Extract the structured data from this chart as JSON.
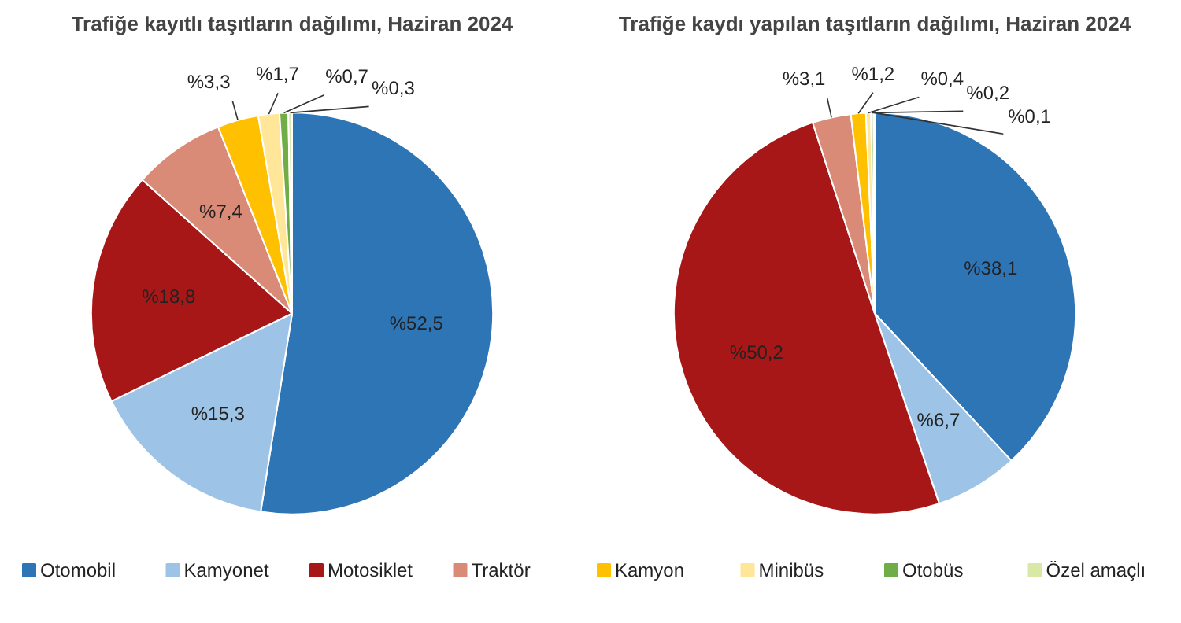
{
  "chart_data": [
    {
      "type": "pie",
      "title": "Trafiğe kayıtlı taşıtların dağılımı, Haziran 2024",
      "legend": "bottom",
      "categories": [
        "Otomobil",
        "Kamyonet",
        "Motosiklet",
        "Traktör",
        "Kamyon",
        "Minibüs",
        "Otobüs",
        "Özel amaçlı"
      ],
      "values": [
        52.5,
        15.3,
        18.8,
        7.4,
        3.3,
        1.7,
        0.7,
        0.3
      ],
      "value_labels": [
        "%52,5",
        "%15,3",
        "%18,8",
        "%7,4",
        "%3,3",
        "%1,7",
        "%0,7",
        "%0,3"
      ],
      "colors": [
        "#2e75b6",
        "#9dc3e6",
        "#a81717",
        "#d98b78",
        "#ffc000",
        "#ffe699",
        "#70ad47",
        "#d9e8a6"
      ]
    },
    {
      "type": "pie",
      "title": "Trafiğe kaydı yapılan taşıtların dağılımı, Haziran 2024",
      "categories": [
        null,
        null,
        null,
        null,
        null,
        null,
        null,
        null
      ],
      "values": [
        38.1,
        6.7,
        50.2,
        3.1,
        1.2,
        0.4,
        0.2,
        0.1
      ],
      "value_labels": [
        "%38,1",
        "%6,7",
        "%50,2",
        "%3,1",
        "%1,2",
        "%0,4",
        "%0,2",
        "%0,1"
      ],
      "colors": [
        "#2e75b6",
        "#9dc3e6",
        "#a81717",
        "#d98b78",
        "#ffc000",
        "#ffe699",
        "#70ad47",
        "#d9e8a6"
      ]
    }
  ]
}
